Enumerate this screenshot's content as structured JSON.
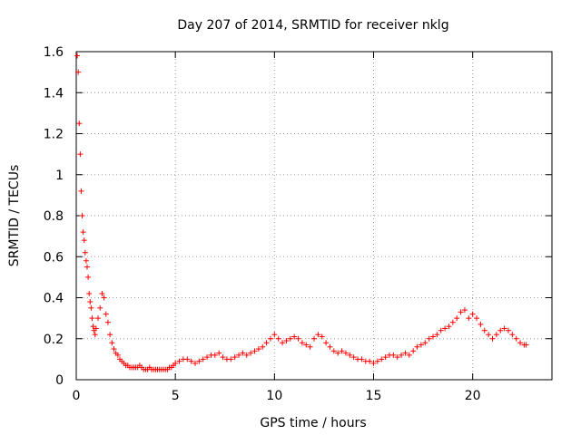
{
  "chart_data": {
    "type": "scatter",
    "title": "Day 207 of 2014, SRMTID for receiver nklg",
    "xlabel": "GPS time / hours",
    "ylabel": "SRMTID / TECUs",
    "xlim": [
      0,
      24
    ],
    "ylim": [
      0,
      1.6
    ],
    "xticks": [
      0,
      5,
      10,
      15,
      20
    ],
    "xtick_labels": [
      "0",
      "5",
      "10",
      "15",
      "20"
    ],
    "yticks": [
      0,
      0.2,
      0.4,
      0.6,
      0.8,
      1.0,
      1.2,
      1.4,
      1.6
    ],
    "ytick_labels": [
      "0",
      "0.2",
      "0.4",
      "0.6",
      "0.8",
      "1",
      "1.2",
      "1.4",
      "1.6"
    ],
    "grid": true,
    "marker": "+",
    "color": "#ff0000",
    "series": [
      {
        "name": "SRMTID",
        "x": [
          0.05,
          0.1,
          0.15,
          0.2,
          0.25,
          0.3,
          0.35,
          0.4,
          0.45,
          0.5,
          0.55,
          0.6,
          0.65,
          0.7,
          0.75,
          0.8,
          0.85,
          0.9,
          0.95,
          1.0,
          1.1,
          1.2,
          1.3,
          1.4,
          1.5,
          1.6,
          1.7,
          1.8,
          1.9,
          2.0,
          2.1,
          2.2,
          2.3,
          2.4,
          2.5,
          2.6,
          2.7,
          2.8,
          2.9,
          3.0,
          3.1,
          3.2,
          3.3,
          3.4,
          3.5,
          3.6,
          3.7,
          3.8,
          3.9,
          4.0,
          4.1,
          4.2,
          4.3,
          4.4,
          4.5,
          4.6,
          4.7,
          4.8,
          4.9,
          5.0,
          5.2,
          5.4,
          5.6,
          5.8,
          6.0,
          6.2,
          6.4,
          6.6,
          6.8,
          7.0,
          7.2,
          7.4,
          7.6,
          7.8,
          8.0,
          8.2,
          8.4,
          8.6,
          8.8,
          9.0,
          9.2,
          9.4,
          9.6,
          9.8,
          10.0,
          10.2,
          10.4,
          10.6,
          10.8,
          11.0,
          11.2,
          11.4,
          11.6,
          11.8,
          12.0,
          12.2,
          12.4,
          12.6,
          12.8,
          13.0,
          13.2,
          13.4,
          13.6,
          13.8,
          14.0,
          14.2,
          14.4,
          14.6,
          14.8,
          15.0,
          15.2,
          15.4,
          15.6,
          15.8,
          16.0,
          16.2,
          16.4,
          16.6,
          16.8,
          17.0,
          17.2,
          17.4,
          17.6,
          17.8,
          18.0,
          18.2,
          18.4,
          18.6,
          18.8,
          19.0,
          19.2,
          19.4,
          19.6,
          19.8,
          20.0,
          20.2,
          20.4,
          20.6,
          20.8,
          21.0,
          21.2,
          21.4,
          21.6,
          21.8,
          22.0,
          22.2,
          22.4,
          22.6,
          22.7
        ],
        "y": [
          1.58,
          1.5,
          1.25,
          1.1,
          0.92,
          0.8,
          0.72,
          0.68,
          0.62,
          0.58,
          0.55,
          0.5,
          0.42,
          0.38,
          0.35,
          0.3,
          0.26,
          0.24,
          0.22,
          0.25,
          0.3,
          0.35,
          0.42,
          0.4,
          0.32,
          0.28,
          0.22,
          0.18,
          0.15,
          0.13,
          0.12,
          0.1,
          0.09,
          0.08,
          0.07,
          0.07,
          0.06,
          0.06,
          0.06,
          0.06,
          0.06,
          0.07,
          0.06,
          0.05,
          0.05,
          0.05,
          0.06,
          0.05,
          0.05,
          0.05,
          0.05,
          0.05,
          0.05,
          0.05,
          0.05,
          0.05,
          0.06,
          0.06,
          0.07,
          0.08,
          0.09,
          0.1,
          0.1,
          0.09,
          0.08,
          0.09,
          0.1,
          0.11,
          0.12,
          0.12,
          0.13,
          0.11,
          0.1,
          0.1,
          0.11,
          0.12,
          0.13,
          0.12,
          0.13,
          0.14,
          0.15,
          0.16,
          0.18,
          0.2,
          0.22,
          0.2,
          0.18,
          0.19,
          0.2,
          0.21,
          0.2,
          0.18,
          0.17,
          0.16,
          0.2,
          0.22,
          0.21,
          0.18,
          0.16,
          0.14,
          0.13,
          0.14,
          0.13,
          0.12,
          0.11,
          0.1,
          0.1,
          0.09,
          0.09,
          0.08,
          0.09,
          0.1,
          0.11,
          0.12,
          0.12,
          0.11,
          0.12,
          0.13,
          0.12,
          0.14,
          0.16,
          0.17,
          0.18,
          0.2,
          0.21,
          0.22,
          0.24,
          0.25,
          0.26,
          0.28,
          0.3,
          0.33,
          0.34,
          0.3,
          0.32,
          0.3,
          0.27,
          0.24,
          0.22,
          0.2,
          0.22,
          0.24,
          0.25,
          0.24,
          0.22,
          0.2,
          0.18,
          0.17,
          0.17
        ]
      }
    ]
  }
}
